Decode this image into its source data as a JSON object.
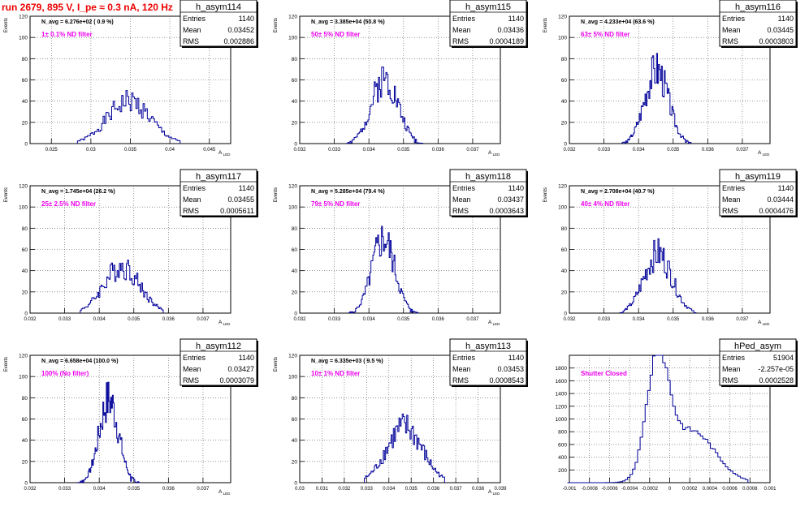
{
  "title": "run 2679,   895 V, I_pe ≈ 0.3 nA, 120 Hz",
  "colors": {
    "title": "#ee0000",
    "filter_label": "#ee00ee",
    "histogram": "#000099",
    "grid": "#555555"
  },
  "stat_labels": {
    "entries": "Entries",
    "mean": "Mean",
    "rms": "RMS"
  },
  "chart_data": [
    {
      "type": "bar",
      "name": "h_asym114",
      "stats": {
        "entries": "1140",
        "mean": "0.03452",
        "rms": "0.002886"
      },
      "navg": "N_avg = 6.276e+02 ( 0.9 %)",
      "label": "1± 0.1% ND filter",
      "ylabel": "Events",
      "xlabel": "A_LED",
      "xlim": [
        0.0223,
        0.0477
      ],
      "ylim": [
        0,
        120
      ],
      "xticks": [
        {
          "v": 0.025,
          "t": "0.025"
        },
        {
          "v": 0.03,
          "t": "0.03"
        },
        {
          "v": 0.035,
          "t": "0.035"
        },
        {
          "v": 0.04,
          "t": "0.04"
        },
        {
          "v": 0.045,
          "t": "0.045"
        }
      ],
      "yticks": [
        0,
        20,
        40,
        60,
        80,
        100,
        120
      ],
      "grid": true,
      "peak": 40,
      "shape": "gauss",
      "center": 0.0348,
      "sigma": 0.0027,
      "spread": 0.0065,
      "seed": 1
    },
    {
      "type": "bar",
      "name": "h_asym115",
      "stats": {
        "entries": "1140",
        "mean": "0.03436",
        "rms": "0.0004189"
      },
      "navg": "N_avg = 3.385e+04 (50.8 %)",
      "label": "50± 5% ND filter",
      "ylabel": "Events",
      "xlabel": "A_LED",
      "xlim": [
        0.032,
        0.0378
      ],
      "ylim": [
        0,
        120
      ],
      "xticks": [
        {
          "v": 0.032,
          "t": "0.032"
        },
        {
          "v": 0.033,
          "t": "0.033"
        },
        {
          "v": 0.034,
          "t": "0.034"
        },
        {
          "v": 0.035,
          "t": "0.035"
        },
        {
          "v": 0.036,
          "t": "0.036"
        },
        {
          "v": 0.037,
          "t": "0.037"
        }
      ],
      "yticks": [
        0,
        20,
        40,
        60,
        80,
        100,
        120
      ],
      "grid": true,
      "peak": 62,
      "shape": "gauss",
      "center": 0.03446,
      "sigma": 0.00038,
      "spread": 0.0011,
      "seed": 2
    },
    {
      "type": "bar",
      "name": "h_asym116",
      "stats": {
        "entries": "1140",
        "mean": "0.03445",
        "rms": "0.0003803"
      },
      "navg": "N_avg = 4.233e+04 (63.6 %)",
      "label": "63± 5% ND filter",
      "ylabel": "Events",
      "xlabel": "A_LED",
      "xlim": [
        0.032,
        0.0378
      ],
      "ylim": [
        0,
        120
      ],
      "xticks": [
        {
          "v": 0.032,
          "t": "0.032"
        },
        {
          "v": 0.033,
          "t": "0.033"
        },
        {
          "v": 0.034,
          "t": "0.034"
        },
        {
          "v": 0.035,
          "t": "0.035"
        },
        {
          "v": 0.036,
          "t": "0.036"
        },
        {
          "v": 0.037,
          "t": "0.037"
        }
      ],
      "yticks": [
        0,
        20,
        40,
        60,
        80,
        100,
        120
      ],
      "grid": true,
      "peak": 70,
      "shape": "gauss",
      "center": 0.03452,
      "sigma": 0.00034,
      "spread": 0.001,
      "seed": 3
    },
    {
      "type": "bar",
      "name": "h_asym117",
      "stats": {
        "entries": "1140",
        "mean": "0.03455",
        "rms": "0.0005611"
      },
      "navg": "N_avg = 1.745e+04 (26.2 %)",
      "label": "25± 2.5% ND filter",
      "ylabel": "Events",
      "xlabel": "A_LED",
      "xlim": [
        0.032,
        0.0378
      ],
      "ylim": [
        0,
        120
      ],
      "xticks": [
        {
          "v": 0.032,
          "t": "0.032"
        },
        {
          "v": 0.033,
          "t": "0.033"
        },
        {
          "v": 0.034,
          "t": "0.034"
        },
        {
          "v": 0.035,
          "t": "0.035"
        },
        {
          "v": 0.036,
          "t": "0.036"
        },
        {
          "v": 0.037,
          "t": "0.037"
        }
      ],
      "yticks": [
        0,
        20,
        40,
        60,
        80,
        100,
        120
      ],
      "grid": true,
      "peak": 44,
      "shape": "gauss",
      "center": 0.03465,
      "sigma": 0.00052,
      "spread": 0.0012,
      "seed": 4
    },
    {
      "type": "bar",
      "name": "h_asym118",
      "stats": {
        "entries": "1140",
        "mean": "0.03437",
        "rms": "0.0003643"
      },
      "navg": "N_avg = 5.285e+04 (79.4 %)",
      "label": "79± 5% ND filter",
      "ylabel": "Events",
      "xlabel": "A_LED",
      "xlim": [
        0.032,
        0.0378
      ],
      "ylim": [
        0,
        120
      ],
      "xticks": [
        {
          "v": 0.032,
          "t": "0.032"
        },
        {
          "v": 0.033,
          "t": "0.033"
        },
        {
          "v": 0.034,
          "t": "0.034"
        },
        {
          "v": 0.035,
          "t": "0.035"
        },
        {
          "v": 0.036,
          "t": "0.036"
        },
        {
          "v": 0.037,
          "t": "0.037"
        }
      ],
      "yticks": [
        0,
        20,
        40,
        60,
        80,
        100,
        120
      ],
      "grid": true,
      "peak": 70,
      "shape": "gauss",
      "center": 0.03442,
      "sigma": 0.00033,
      "spread": 0.001,
      "seed": 5
    },
    {
      "type": "bar",
      "name": "h_asym119",
      "stats": {
        "entries": "1140",
        "mean": "0.03444",
        "rms": "0.0004476"
      },
      "navg": "N_avg = 2.708e+04 (40.7 %)",
      "label": "40± 4% ND filter",
      "ylabel": "Events",
      "xlabel": "A_LED",
      "xlim": [
        0.032,
        0.0378
      ],
      "ylim": [
        0,
        120
      ],
      "xticks": [
        {
          "v": 0.032,
          "t": "0.032"
        },
        {
          "v": 0.033,
          "t": "0.033"
        },
        {
          "v": 0.034,
          "t": "0.034"
        },
        {
          "v": 0.035,
          "t": "0.035"
        },
        {
          "v": 0.036,
          "t": "0.036"
        },
        {
          "v": 0.037,
          "t": "0.037"
        }
      ],
      "yticks": [
        0,
        20,
        40,
        60,
        80,
        100,
        120
      ],
      "grid": true,
      "peak": 56,
      "shape": "gauss",
      "center": 0.03456,
      "sigma": 0.0004,
      "spread": 0.0011,
      "seed": 6
    },
    {
      "type": "bar",
      "name": "h_asym112",
      "stats": {
        "entries": "1140",
        "mean": "0.03427",
        "rms": "0.0003079"
      },
      "navg": "N_avg = 6.658e+04 (100.0 %)",
      "label": "100% (No filter)",
      "ylabel": "Events",
      "xlabel": "A_LED",
      "xlim": [
        0.032,
        0.0378
      ],
      "ylim": [
        0,
        120
      ],
      "xticks": [
        {
          "v": 0.032,
          "t": "0.032"
        },
        {
          "v": 0.033,
          "t": "0.033"
        },
        {
          "v": 0.034,
          "t": "0.034"
        },
        {
          "v": 0.035,
          "t": "0.035"
        },
        {
          "v": 0.036,
          "t": "0.036"
        },
        {
          "v": 0.037,
          "t": "0.037"
        }
      ],
      "yticks": [
        0,
        20,
        40,
        60,
        80,
        100,
        120
      ],
      "grid": true,
      "peak": 78,
      "shape": "gauss",
      "center": 0.03428,
      "sigma": 0.00028,
      "spread": 0.0009,
      "seed": 7
    },
    {
      "type": "bar",
      "name": "h_asym113",
      "stats": {
        "entries": "1140",
        "mean": "0.03453",
        "rms": "0.0008543"
      },
      "navg": "N_avg = 6.335e+03 ( 9.5 %)",
      "label": "10± 1% ND filter",
      "ylabel": "Events",
      "xlabel": "A_LED",
      "xlim": [
        0.03,
        0.039
      ],
      "ylim": [
        0,
        120
      ],
      "xticks": [
        {
          "v": 0.03,
          "t": "0.03"
        },
        {
          "v": 0.031,
          "t": "0.031"
        },
        {
          "v": 0.032,
          "t": "0.032"
        },
        {
          "v": 0.033,
          "t": "0.033"
        },
        {
          "v": 0.034,
          "t": "0.034"
        },
        {
          "v": 0.035,
          "t": "0.035"
        },
        {
          "v": 0.036,
          "t": "0.036"
        },
        {
          "v": 0.037,
          "t": "0.037"
        },
        {
          "v": 0.038,
          "t": "0.038"
        },
        {
          "v": 0.039,
          "t": "0.039"
        }
      ],
      "yticks": [
        0,
        20,
        40,
        60,
        80,
        100,
        120
      ],
      "grid": true,
      "peak": 52,
      "shape": "gauss",
      "center": 0.0347,
      "sigma": 0.0008,
      "spread": 0.0018,
      "seed": 8
    },
    {
      "type": "bar",
      "name": "hPed_asym",
      "stats": {
        "entries": "51904",
        "mean": "-2.257e-05",
        "rms": "0.0002528"
      },
      "navg": "",
      "label": "Shutter Closed",
      "ylabel": "",
      "xlabel": "",
      "xlim": [
        -0.001,
        0.001
      ],
      "ylim": [
        0,
        2000
      ],
      "xticks": [
        {
          "v": -0.001,
          "t": "-0.001"
        },
        {
          "v": -0.0008,
          "t": "-0.0008"
        },
        {
          "v": -0.0006,
          "t": "-0.0006"
        },
        {
          "v": -0.0004,
          "t": "-0.0004"
        },
        {
          "v": -0.0002,
          "t": "-0.0002"
        },
        {
          "v": 0,
          "t": "0"
        },
        {
          "v": 0.0002,
          "t": "0.0002"
        },
        {
          "v": 0.0004,
          "t": "0.0004"
        },
        {
          "v": 0.0006,
          "t": "0.0006"
        },
        {
          "v": 0.0008,
          "t": "0.0008"
        },
        {
          "v": 0.001,
          "t": "0.001"
        }
      ],
      "yticks": [
        200,
        400,
        600,
        800,
        1000,
        1200,
        1400,
        1600,
        1800
      ],
      "grid": true,
      "peak": 1850,
      "shape": "ped",
      "center": -0.00012,
      "sigma": 0.00011,
      "spread": 0.0009,
      "seed": 9
    }
  ]
}
